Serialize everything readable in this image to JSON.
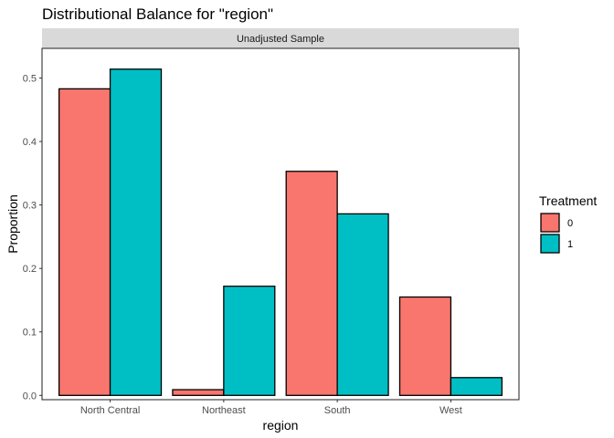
{
  "chart_data": {
    "type": "bar",
    "title": "Distributional Balance for \"region\"",
    "facet_label": "Unadjusted Sample",
    "xlabel": "region",
    "ylabel": "Proportion",
    "categories": [
      "North Central",
      "Northeast",
      "South",
      "West"
    ],
    "series": [
      {
        "name": "0",
        "values": [
          0.483,
          0.009,
          0.353,
          0.155
        ],
        "color": "#F8766D"
      },
      {
        "name": "1",
        "values": [
          0.514,
          0.172,
          0.286,
          0.028
        ],
        "color": "#00BFC4"
      }
    ],
    "ylim": [
      0,
      0.54
    ],
    "yticks": [
      0,
      0.1,
      0.2,
      0.3,
      0.4,
      0.5
    ],
    "ytick_labels": [
      "0.0",
      "0.1",
      "0.2",
      "0.3",
      "0.4",
      "0.5"
    ],
    "grid": false,
    "legend": {
      "title": "Treatment",
      "placement": "right"
    }
  }
}
